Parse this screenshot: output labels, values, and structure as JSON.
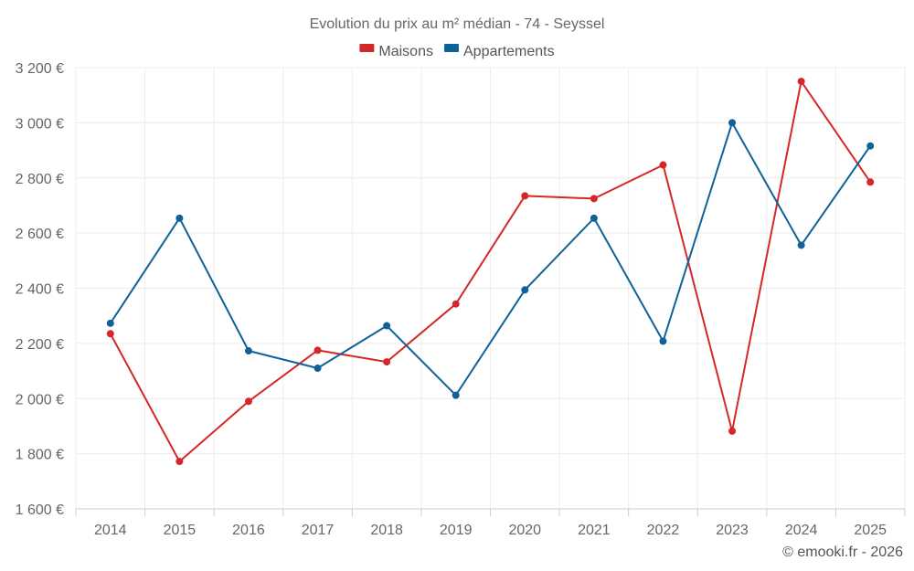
{
  "chart_data": {
    "type": "line",
    "title": "Evolution du prix au m² médian - 74 - Seyssel",
    "categories": [
      "2014",
      "2015",
      "2016",
      "2017",
      "2018",
      "2019",
      "2020",
      "2021",
      "2022",
      "2023",
      "2024",
      "2025"
    ],
    "series": [
      {
        "name": "Maisons",
        "color": "#d62728",
        "values": [
          2235,
          1772,
          1990,
          2175,
          2133,
          2343,
          2735,
          2725,
          2847,
          1882,
          3150,
          2785
        ]
      },
      {
        "name": "Appartements",
        "color": "#0e6297",
        "values": [
          2273,
          2654,
          2173,
          2110,
          2264,
          2012,
          2394,
          2654,
          2208,
          3000,
          2556,
          2916
        ]
      }
    ],
    "ylim": [
      1600,
      3200
    ],
    "yticks": [
      1600,
      1800,
      2000,
      2200,
      2400,
      2600,
      2800,
      3000,
      3200
    ],
    "ytick_labels": [
      "1 600 €",
      "1 800 €",
      "2 000 €",
      "2 200 €",
      "2 400 €",
      "2 600 €",
      "2 800 €",
      "3 000 €",
      "3 200 €"
    ],
    "legend_position": "top-center",
    "grid": true,
    "xlabel": "",
    "ylabel": "",
    "credit": "© emooki.fr - 2026"
  }
}
